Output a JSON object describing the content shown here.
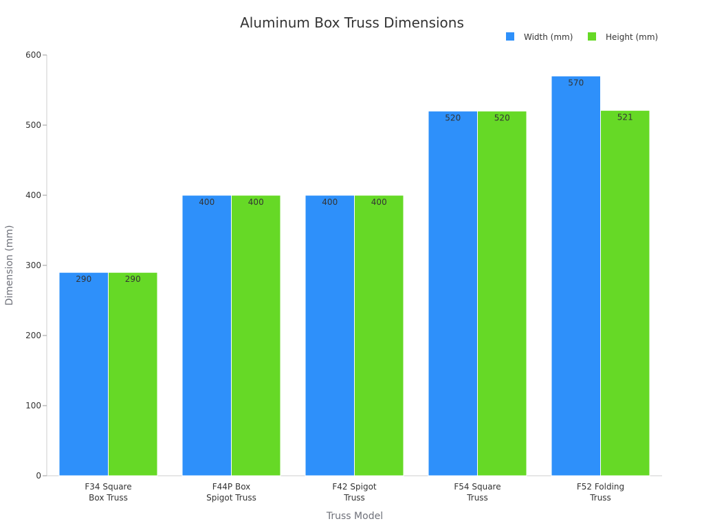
{
  "chart_data": {
    "type": "bar",
    "title": "Aluminum Box Truss Dimensions",
    "xlabel": "Truss Model",
    "ylabel": "Dimension (mm)",
    "categories": [
      [
        "F34 Square",
        "Box Truss"
      ],
      [
        "F44P Box",
        "Spigot Truss"
      ],
      [
        "F42 Spigot",
        "Truss"
      ],
      [
        "F54 Square",
        "Truss"
      ],
      [
        "F52 Folding",
        "Truss"
      ]
    ],
    "series": [
      {
        "name": "Width (mm)",
        "color": "#2e90fa",
        "values": [
          290,
          400,
          400,
          520,
          570
        ]
      },
      {
        "name": "Height (mm)",
        "color": "#66d926",
        "values": [
          290,
          400,
          400,
          520,
          521
        ]
      }
    ],
    "ylim": [
      0,
      600
    ],
    "yticks": [
      0,
      100,
      200,
      300,
      400,
      500,
      600
    ],
    "legend_position": "top-right",
    "grid": false
  }
}
